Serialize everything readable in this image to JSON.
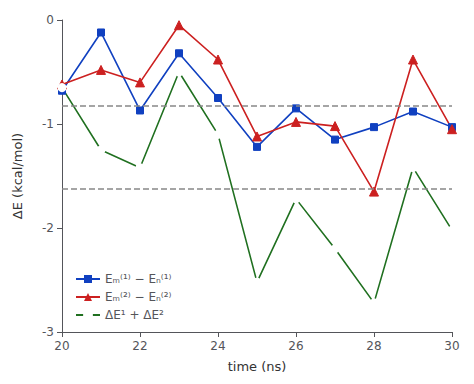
{
  "chart_data": {
    "type": "line",
    "x": [
      20,
      21,
      22,
      23,
      24,
      25,
      26,
      27,
      28,
      29,
      30
    ],
    "series": [
      {
        "name": "Eₘ⁽¹⁾ − Eₙ⁽¹⁾",
        "color": "#1040c0",
        "marker": "square",
        "values": [
          -0.68,
          -0.12,
          -0.87,
          -0.32,
          -0.75,
          -1.22,
          -0.85,
          -1.15,
          -1.03,
          -0.88,
          -1.03
        ]
      },
      {
        "name": "Eₘ⁽²⁾ − Eₙ⁽²⁾",
        "color": "#cc2020",
        "marker": "triangle",
        "values": [
          -0.62,
          -0.48,
          -0.6,
          -0.05,
          -0.38,
          -1.12,
          -0.98,
          -1.02,
          -1.65,
          -0.38,
          -1.05
        ]
      },
      {
        "name": "ΔE¹ + ΔE²",
        "color": "#207020",
        "marker": "open_circle",
        "values": [
          -0.65,
          -1.25,
          -1.42,
          -0.5,
          -1.1,
          -2.52,
          -1.72,
          -2.2,
          -2.72,
          -1.42,
          -2.02
        ]
      }
    ],
    "hlines": [
      {
        "value": -0.82,
        "color": "#888888",
        "line_style": "dashed"
      },
      {
        "value": -1.62,
        "color": "#888888",
        "line_style": "dashed"
      }
    ],
    "xlabel": "time (ns)",
    "ylabel": "ΔE (kcal/mol)",
    "xlim": [
      20,
      30
    ],
    "ylim": [
      -3,
      0
    ],
    "xticks": [
      20,
      22,
      24,
      26,
      28,
      30
    ],
    "yticks": [
      0,
      -1,
      -2,
      -3
    ],
    "grid": false,
    "legend": "lower left"
  }
}
